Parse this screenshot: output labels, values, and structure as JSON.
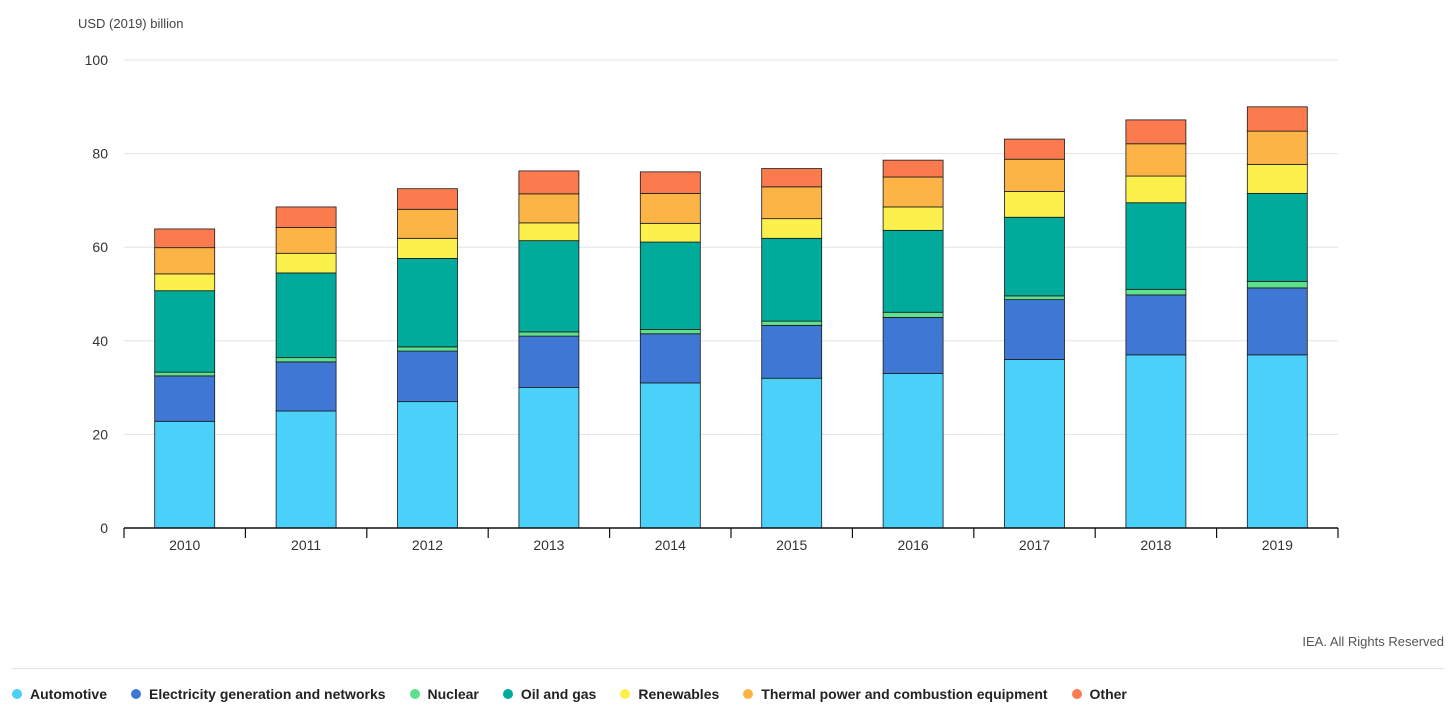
{
  "chart_data": {
    "type": "bar",
    "stacked": true,
    "ylabel": "USD (2019) billion",
    "ylim": [
      0,
      100
    ],
    "yticks": [
      0,
      20,
      40,
      60,
      80,
      100
    ],
    "grid": true,
    "legend_position": "bottom",
    "categories": [
      "2010",
      "2011",
      "2012",
      "2013",
      "2014",
      "2015",
      "2016",
      "2017",
      "2018",
      "2019"
    ],
    "series": [
      {
        "name": "Automotive",
        "color": "#4BD0FA",
        "values": [
          22.8,
          25.0,
          27.0,
          30.0,
          31.0,
          32.0,
          33.0,
          36.0,
          37.0,
          37.0
        ]
      },
      {
        "name": "Electricity generation and networks",
        "color": "#3F78D4",
        "values": [
          9.7,
          10.5,
          10.8,
          11.0,
          10.5,
          11.3,
          12.0,
          12.8,
          12.8,
          14.3
        ]
      },
      {
        "name": "Nuclear",
        "color": "#5FE08E",
        "values": [
          0.8,
          0.9,
          0.9,
          0.9,
          0.9,
          0.9,
          1.1,
          0.8,
          1.2,
          1.4
        ]
      },
      {
        "name": "Oil and gas",
        "color": "#00AB9C",
        "values": [
          17.4,
          18.1,
          18.9,
          19.5,
          18.7,
          17.7,
          17.5,
          16.8,
          18.5,
          18.8
        ]
      },
      {
        "name": "Renewables",
        "color": "#FCF04C",
        "values": [
          3.6,
          4.2,
          4.3,
          3.8,
          4.0,
          4.2,
          5.0,
          5.5,
          5.7,
          6.2
        ]
      },
      {
        "name": "Thermal power and combustion equipment",
        "color": "#FCB447",
        "values": [
          5.6,
          5.5,
          6.2,
          6.2,
          6.4,
          6.8,
          6.4,
          6.9,
          6.9,
          7.1
        ]
      },
      {
        "name": "Other",
        "color": "#FB7B4E",
        "values": [
          4.0,
          4.4,
          4.4,
          4.9,
          4.6,
          3.9,
          3.6,
          4.3,
          5.1,
          5.2
        ]
      }
    ]
  },
  "credit": "IEA. All Rights Reserved"
}
